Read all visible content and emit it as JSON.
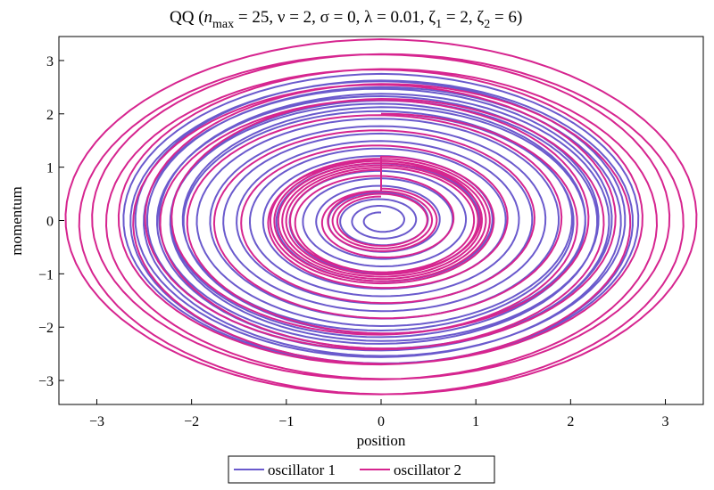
{
  "chart_data": {
    "type": "line",
    "title": {
      "prefix": "QQ  (",
      "n_symbol": "n",
      "n_subscript": "max",
      "rest1": " = 25, ν = 2, σ = 0, λ = 0.01, ζ",
      "z1_subscript": "1",
      "rest2": " = 2, ζ",
      "z2_subscript": "2",
      "rest3": " = 6)"
    },
    "xlabel": "position",
    "ylabel": "momentum",
    "xlim": [
      -3.4,
      3.4
    ],
    "ylim": [
      -3.45,
      3.45
    ],
    "x_ticks": [
      -3,
      -2,
      -1,
      0,
      1,
      2,
      3
    ],
    "y_ticks": [
      -3,
      -2,
      -1,
      0,
      1,
      2,
      3
    ],
    "x_tick_labels": [
      "−3",
      "−2",
      "−1",
      "0",
      "1",
      "2",
      "3"
    ],
    "y_tick_labels": [
      "−3",
      "−2",
      "−1",
      "0",
      "1",
      "2",
      "3"
    ],
    "grid": false,
    "legend_position": "bottom-center",
    "series": [
      {
        "name": "oscillator 1",
        "color": "#6a5acd",
        "start": [
          0,
          2.0
        ],
        "groups": [
          {
            "start_radius": 2.0,
            "end_radius": 2.75,
            "turns": 6
          },
          {
            "start_radius": 2.75,
            "end_radius": 0.65,
            "turns": 15
          },
          {
            "start_radius": 0.65,
            "end_radius": 0.15,
            "turns": 4
          }
        ]
      },
      {
        "name": "oscillator 2",
        "color": "#d6258f",
        "start": [
          0,
          2.0
        ],
        "groups": [
          {
            "start_radius": 2.0,
            "end_radius": 3.4,
            "turns": 5
          },
          {
            "start_radius": 3.4,
            "end_radius": 0.55,
            "turns": 10
          },
          {
            "start_radius": 1.2,
            "end_radius": 0.95,
            "turns": 6
          },
          {
            "start_radius": 0.6,
            "end_radius": 0.45,
            "turns": 3
          }
        ]
      }
    ]
  }
}
